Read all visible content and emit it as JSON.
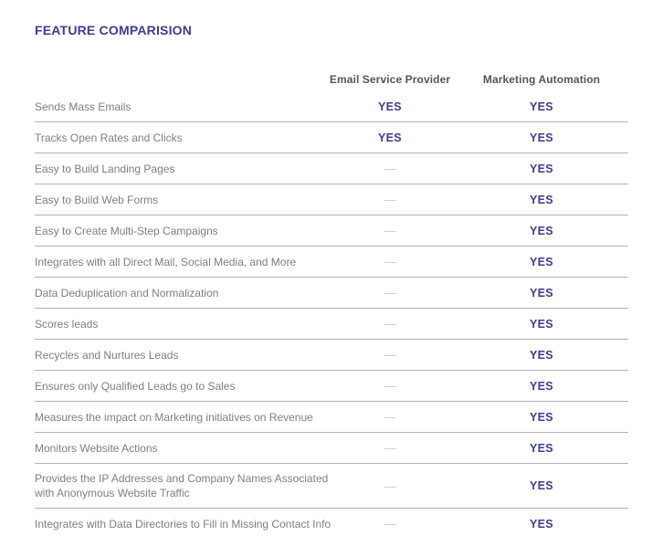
{
  "page": {
    "title": "FEATURE COMPARISION"
  },
  "table": {
    "col_headers": [
      "Email Service Provider",
      "Marketing Automation"
    ],
    "rows": [
      {
        "feature": "Sends Mass Emails",
        "esp": "YES",
        "ma": "YES"
      },
      {
        "feature": "Tracks Open Rates and Clicks",
        "esp": "YES",
        "ma": "YES"
      },
      {
        "feature": "Easy to Build Landing Pages",
        "esp": "—",
        "ma": "YES"
      },
      {
        "feature": "Easy to Build Web Forms",
        "esp": "—",
        "ma": "YES"
      },
      {
        "feature": "Easy to Create Multi-Step Campaigns",
        "esp": "—",
        "ma": "YES"
      },
      {
        "feature": "Integrates with all Direct Mail, Social Media, and More",
        "esp": "—",
        "ma": "YES"
      },
      {
        "feature": "Data Deduplication and Normalization",
        "esp": "—",
        "ma": "YES"
      },
      {
        "feature": "Scores leads",
        "esp": "—",
        "ma": "YES"
      },
      {
        "feature": "Recycles and Nurtures Leads",
        "esp": "—",
        "ma": "YES"
      },
      {
        "feature": "Ensures only Qualified Leads go to Sales",
        "esp": "—",
        "ma": "YES"
      },
      {
        "feature": "Measures the impact on Marketing initiatives on Revenue",
        "esp": "—",
        "ma": "YES"
      },
      {
        "feature": "Monitors Website Actions",
        "esp": "—",
        "ma": "YES"
      },
      {
        "feature": "Provides the IP Addresses and Company Names Associated with Anonymous Website Traffic",
        "esp": "—",
        "ma": "YES"
      },
      {
        "feature": "Integrates with Data Directories to Fill in Missing Contact Info",
        "esp": "—",
        "ma": "YES"
      }
    ]
  },
  "colors": {
    "accent_purple": "#3c3c9e",
    "header_gray": "#56565a",
    "label_gray": "#7f7f83",
    "dash_gray": "#c9c9cb",
    "divider_gray": "#b3b3b3"
  }
}
